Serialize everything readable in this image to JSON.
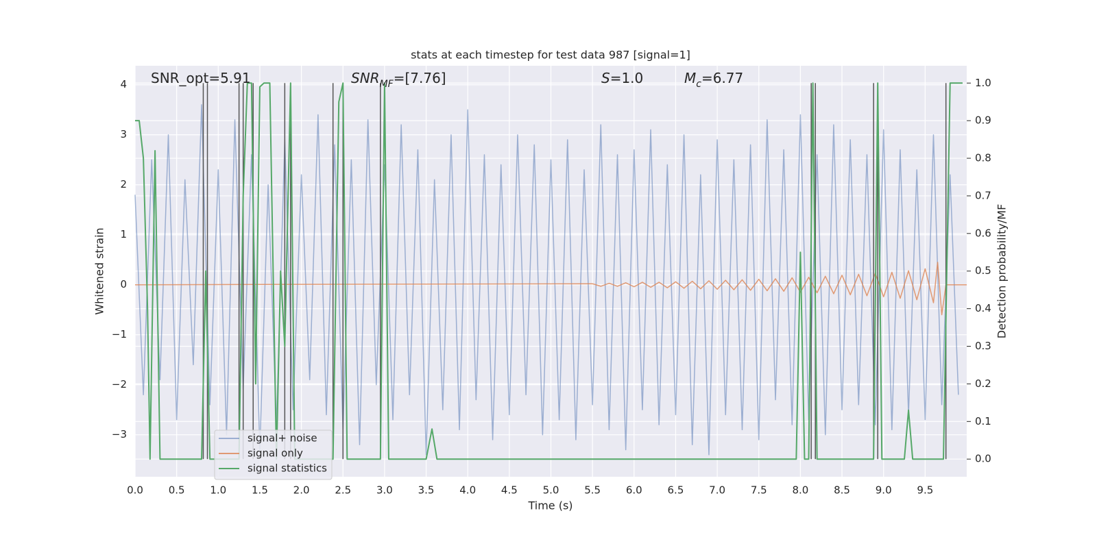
{
  "chart_data": {
    "type": "line",
    "title": "stats at each timestep for test data 987 [signal=1]",
    "xlabel": "Time (s)",
    "ylabel": "Whitened strain",
    "y2label": "Detection probability/MF",
    "annotations": [
      {
        "text": "SNR_opt=5.91"
      },
      {
        "italic": "SNR",
        "sub": "MF",
        "text": "=[7.76]"
      },
      {
        "italic": "S",
        "text": "=1.0"
      },
      {
        "italic": "M",
        "sub": "c",
        "text": "=6.77"
      }
    ],
    "xlim": [
      0,
      10
    ],
    "ylim": [
      -3.84,
      4.38
    ],
    "y2lim": [
      -0.047,
      1.046
    ],
    "xticks": [
      {
        "value": 0,
        "label": "0.0"
      },
      0.5,
      {
        "value": 1,
        "label": "1.0"
      },
      1.5,
      {
        "value": 2,
        "label": "2.0"
      },
      2.5,
      {
        "value": 3,
        "label": "3.0"
      },
      3.5,
      {
        "value": 4,
        "label": "4.0"
      },
      4.5,
      {
        "value": 5,
        "label": "5.0"
      },
      5.5,
      {
        "value": 6,
        "label": "6.0"
      },
      6.5,
      {
        "value": 7,
        "label": "7.0"
      },
      7.5,
      {
        "value": 8,
        "label": "8.0"
      },
      8.5,
      {
        "value": 9,
        "label": "9.0"
      },
      9.5
    ],
    "yticks": [
      {
        "value": -3,
        "label": "−3"
      },
      {
        "value": -2,
        "label": "−2"
      },
      {
        "value": -1,
        "label": "−1"
      },
      0,
      1,
      2,
      3,
      4
    ],
    "y2ticks": [
      {
        "value": 0,
        "label": "0.0"
      },
      0.1,
      0.2,
      0.3,
      0.4,
      0.5,
      0.6,
      0.7,
      0.8,
      0.9,
      {
        "value": 1,
        "label": "1.0"
      }
    ],
    "grid": true,
    "legend_loc": "lower left",
    "vlines": [
      0.82,
      0.87,
      1.25,
      1.3,
      1.42,
      1.8,
      1.87,
      2.38,
      2.5,
      2.95,
      8.13,
      8.18,
      8.88,
      8.93,
      9.75
    ],
    "vline_color": "#555555",
    "series": [
      {
        "name": "signal+ noise",
        "color": "#4c72b0",
        "opacity": 0.5,
        "x": [
          0.0,
          0.1,
          0.2,
          0.3,
          0.4,
          0.5,
          0.6,
          0.7,
          0.8,
          0.9,
          1.0,
          1.1,
          1.2,
          1.3,
          1.4,
          1.5,
          1.6,
          1.7,
          1.8,
          1.9,
          2.0,
          2.1,
          2.2,
          2.3,
          2.4,
          2.5,
          2.6,
          2.7,
          2.8,
          2.9,
          3.0,
          3.1,
          3.2,
          3.3,
          3.4,
          3.5,
          3.6,
          3.7,
          3.8,
          3.9,
          4.0,
          4.1,
          4.2,
          4.3,
          4.4,
          4.5,
          4.6,
          4.7,
          4.8,
          4.9,
          5.0,
          5.1,
          5.2,
          5.3,
          5.4,
          5.5,
          5.6,
          5.7,
          5.8,
          5.9,
          6.0,
          6.1,
          6.2,
          6.3,
          6.4,
          6.5,
          6.6,
          6.7,
          6.8,
          6.9,
          7.0,
          7.1,
          7.2,
          7.3,
          7.4,
          7.5,
          7.6,
          7.7,
          7.8,
          7.9,
          8.0,
          8.1,
          8.2,
          8.3,
          8.4,
          8.5,
          8.6,
          8.7,
          8.8,
          8.9,
          9.0,
          9.1,
          9.2,
          9.3,
          9.4,
          9.5,
          9.6,
          9.7,
          9.8,
          9.9
        ],
        "values": [
          1.8,
          -2.2,
          2.5,
          -1.9,
          3.0,
          -2.7,
          2.1,
          -1.6,
          3.6,
          -2.4,
          2.3,
          -3.0,
          3.3,
          -2.1,
          2.6,
          -3.3,
          2.0,
          -2.8,
          2.9,
          -2.5,
          2.2,
          -1.9,
          3.4,
          -2.6,
          2.8,
          -2.9,
          2.5,
          -3.2,
          3.3,
          -2.0,
          2.4,
          -2.7,
          3.2,
          -2.2,
          2.7,
          -3.4,
          2.1,
          -2.5,
          3.0,
          -2.9,
          3.5,
          -2.3,
          2.6,
          -3.1,
          2.4,
          -2.6,
          3.0,
          -2.2,
          2.8,
          -3.0,
          2.5,
          -2.7,
          2.9,
          -3.1,
          2.3,
          -2.4,
          3.2,
          -2.9,
          2.6,
          -3.3,
          2.7,
          -2.5,
          3.1,
          -2.8,
          2.4,
          -2.6,
          3.0,
          -3.2,
          2.2,
          -3.4,
          2.9,
          -2.6,
          2.5,
          -2.9,
          2.8,
          -3.1,
          3.3,
          -2.3,
          2.7,
          -2.8,
          3.4,
          -2.7,
          2.6,
          -3.0,
          3.2,
          -2.5,
          2.9,
          -2.4,
          2.6,
          -2.8,
          3.1,
          -2.9,
          2.7,
          -2.6,
          2.3,
          -2.7,
          3.0,
          -2.4,
          2.2,
          -2.2
        ]
      },
      {
        "name": "signal only",
        "color": "#dd8452",
        "opacity": 0.8,
        "x": [
          0.0,
          5.5,
          5.6,
          5.7,
          5.8,
          5.9,
          6.0,
          6.1,
          6.2,
          6.3,
          6.4,
          6.5,
          6.6,
          6.7,
          6.8,
          6.9,
          7.0,
          7.1,
          7.2,
          7.3,
          7.4,
          7.5,
          7.6,
          7.7,
          7.8,
          7.9,
          8.0,
          8.1,
          8.2,
          8.3,
          8.4,
          8.5,
          8.6,
          8.7,
          8.8,
          8.9,
          9.0,
          9.1,
          9.2,
          9.3,
          9.4,
          9.5,
          9.6,
          9.65,
          9.7,
          9.75,
          10.0
        ],
        "values": [
          0,
          0.02,
          -0.03,
          0.03,
          -0.03,
          0.04,
          -0.04,
          0.05,
          -0.05,
          0.05,
          -0.06,
          0.06,
          -0.07,
          0.07,
          -0.08,
          0.08,
          -0.09,
          0.09,
          -0.1,
          0.1,
          -0.11,
          0.11,
          -0.12,
          0.12,
          -0.13,
          0.14,
          -0.15,
          0.15,
          -0.16,
          0.17,
          -0.18,
          0.19,
          -0.2,
          0.21,
          -0.22,
          0.23,
          -0.24,
          0.25,
          -0.27,
          0.28,
          -0.3,
          0.32,
          -0.36,
          0.45,
          -0.6,
          0,
          0
        ]
      },
      {
        "name": "signal statistics",
        "color": "#55a868",
        "opacity": 1,
        "axis": "y2",
        "x": [
          0.0,
          0.05,
          0.1,
          0.15,
          0.18,
          0.24,
          0.3,
          0.8,
          0.85,
          0.9,
          0.95,
          1.25,
          1.3,
          1.35,
          1.4,
          1.45,
          1.5,
          1.55,
          1.62,
          1.7,
          1.75,
          1.8,
          1.87,
          1.92,
          2.0,
          2.3,
          2.38,
          2.45,
          2.5,
          2.55,
          2.9,
          2.95,
          3.0,
          3.05,
          3.5,
          3.57,
          3.63,
          7.95,
          8.0,
          8.05,
          8.1,
          8.15,
          8.2,
          8.25,
          8.88,
          8.93,
          8.98,
          9.25,
          9.3,
          9.35,
          9.72,
          9.8,
          9.85,
          9.95
        ],
        "values": [
          0.9,
          0.9,
          0.8,
          0.4,
          0.0,
          0.82,
          0.0,
          0.0,
          0.5,
          0.0,
          0.0,
          0.0,
          0.7,
          1.0,
          1.0,
          0.2,
          0.99,
          1.0,
          1.0,
          0.0,
          0.5,
          0.3,
          1.0,
          0.0,
          0.0,
          0.0,
          0.0,
          0.95,
          1.0,
          0.0,
          0.0,
          0.0,
          1.0,
          0.0,
          0.0,
          0.08,
          0.0,
          0.0,
          0.55,
          0.0,
          0.0,
          1.0,
          0.0,
          0.0,
          0.0,
          1.0,
          0.0,
          0.0,
          0.13,
          0.0,
          0.0,
          1.0,
          1.0,
          1.0
        ]
      }
    ]
  }
}
